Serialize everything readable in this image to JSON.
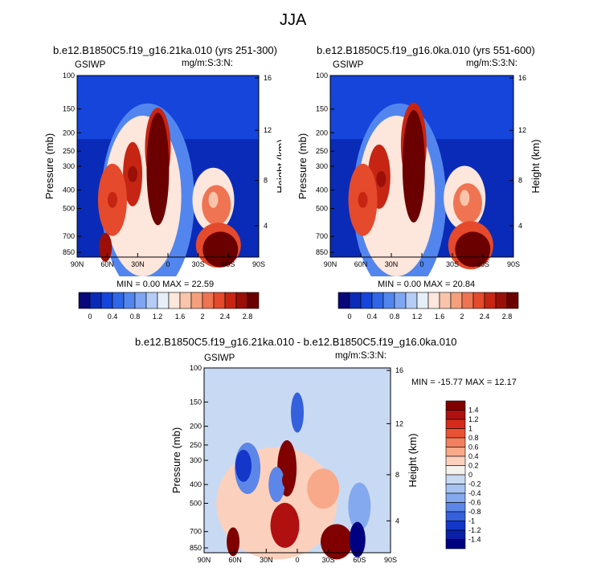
{
  "figure": {
    "title": "JJA",
    "field_label": "GSIWP",
    "units_label": "mg/m:S:3:N:",
    "ylabel_left": "Pressure (mb)",
    "ylabel_right": "Height (km)"
  },
  "panels": [
    {
      "title": "b.e12.B1850C5.f19_g16.21ka.010 (yrs 251-300)",
      "minmax": "MIN =  0.00   MAX = 22.59"
    },
    {
      "title": "b.e12.B1850C5.f19_g16.0ka.010 (yrs 551-600)",
      "minmax": "MIN =  0.00   MAX = 20.84"
    },
    {
      "title": "b.e12.B1850C5.f19_g16.21ka.010 - b.e12.B1850C5.f19_g16.0ka.010",
      "minmax": "MIN = -15.77   MAX =  12.17"
    }
  ],
  "chart_data": [
    {
      "type": "heatmap",
      "title": "b.e12.B1850C5.f19_g16.21ka.010 (yrs 251-300)",
      "xlabel": "",
      "ylabel": "Pressure (mb)",
      "y2label": "Height (km)",
      "x_ticks": [
        "90N",
        "60N",
        "30N",
        "0",
        "30S",
        "60S",
        "90S"
      ],
      "y_ticks": [
        "100",
        "150",
        "200",
        "250",
        "300",
        "400",
        "500",
        "700",
        "850"
      ],
      "y2_ticks": [
        "16",
        "12",
        "8",
        "4"
      ],
      "xlim": [
        90,
        -90
      ],
      "ylim": [
        900,
        100
      ],
      "y_scale": "log",
      "min": 0.0,
      "max": 22.59,
      "colorbar_labels": [
        "0",
        "0.4",
        "0.8",
        "1.2",
        "1.6",
        "2",
        "2.4",
        "2.8"
      ],
      "features": [
        {
          "lat": 10,
          "p": 200,
          "value": 2.8
        },
        {
          "lat": 35,
          "p": 330,
          "value": 2.6
        },
        {
          "lat": 55,
          "p": 450,
          "value": 2.4
        },
        {
          "lat": -52,
          "p": 800,
          "value": 2.8
        },
        {
          "lat": -45,
          "p": 450,
          "value": 1.6
        }
      ]
    },
    {
      "type": "heatmap",
      "title": "b.e12.B1850C5.f19_g16.0ka.010 (yrs 551-600)",
      "xlabel": "",
      "ylabel": "Pressure (mb)",
      "y2label": "Height (km)",
      "x_ticks": [
        "90N",
        "60N",
        "30N",
        "0",
        "30S",
        "60S",
        "90S"
      ],
      "y_ticks": [
        "100",
        "150",
        "200",
        "250",
        "300",
        "400",
        "500",
        "700",
        "850"
      ],
      "y2_ticks": [
        "16",
        "12",
        "8",
        "4"
      ],
      "xlim": [
        90,
        -90
      ],
      "ylim": [
        900,
        100
      ],
      "y_scale": "log",
      "min": 0.0,
      "max": 20.84,
      "colorbar_labels": [
        "0",
        "0.4",
        "0.8",
        "1.2",
        "1.6",
        "2",
        "2.4",
        "2.8"
      ],
      "features": [
        {
          "lat": 8,
          "p": 190,
          "value": 2.8
        },
        {
          "lat": 40,
          "p": 350,
          "value": 2.6
        },
        {
          "lat": 58,
          "p": 450,
          "value": 2.4
        },
        {
          "lat": -48,
          "p": 800,
          "value": 2.8
        },
        {
          "lat": -42,
          "p": 440,
          "value": 1.6
        }
      ]
    },
    {
      "type": "heatmap",
      "title": "b.e12.B1850C5.f19_g16.21ka.010 - b.e12.B1850C5.f19_g16.0ka.010",
      "xlabel": "",
      "ylabel": "Pressure (mb)",
      "y2label": "Height (km)",
      "x_ticks": [
        "90N",
        "60N",
        "30N",
        "0",
        "30S",
        "60S",
        "90S"
      ],
      "y_ticks": [
        "100",
        "150",
        "200",
        "250",
        "300",
        "400",
        "500",
        "700",
        "850"
      ],
      "y2_ticks": [
        "16",
        "12",
        "8",
        "4"
      ],
      "xlim": [
        90,
        -90
      ],
      "ylim": [
        900,
        100
      ],
      "y_scale": "log",
      "min": -15.77,
      "max": 12.17,
      "colorbar_labels": [
        "1.4",
        "1.2",
        "1",
        "0.8",
        "0.6",
        "0.4",
        "0.2",
        "0",
        "-0.2",
        "-0.4",
        "-0.6",
        "-0.8",
        "-1",
        "-1.2",
        "-1.4"
      ],
      "features": [
        {
          "lat": 10,
          "p": 380,
          "value": 1.4
        },
        {
          "lat": 62,
          "p": 800,
          "value": 1.4
        },
        {
          "lat": -40,
          "p": 780,
          "value": 1.4
        },
        {
          "lat": 50,
          "p": 320,
          "value": -1.0
        },
        {
          "lat": -58,
          "p": 770,
          "value": -1.4
        },
        {
          "lat": 0,
          "p": 160,
          "value": -0.8
        }
      ]
    }
  ],
  "colors": {
    "seq": [
      "#08087a",
      "#0a2bb8",
      "#1545db",
      "#2f66e8",
      "#5286ee",
      "#7ea6f2",
      "#b5ccf5",
      "#e6eef8",
      "#fde6dc",
      "#f9c4aa",
      "#f5a07c",
      "#ef7452",
      "#e44a2b",
      "#c62513",
      "#9a1008",
      "#6b0000"
    ],
    "div": [
      "#800000",
      "#b01010",
      "#d62a1a",
      "#ea5235",
      "#f2805e",
      "#f7a98a",
      "#fbd1bd",
      "#f4f1ee",
      "#c8daf3",
      "#a6c2f0",
      "#85a9ee",
      "#5c86e8",
      "#3560de",
      "#1436c9",
      "#0a1fa8",
      "#000080"
    ]
  }
}
